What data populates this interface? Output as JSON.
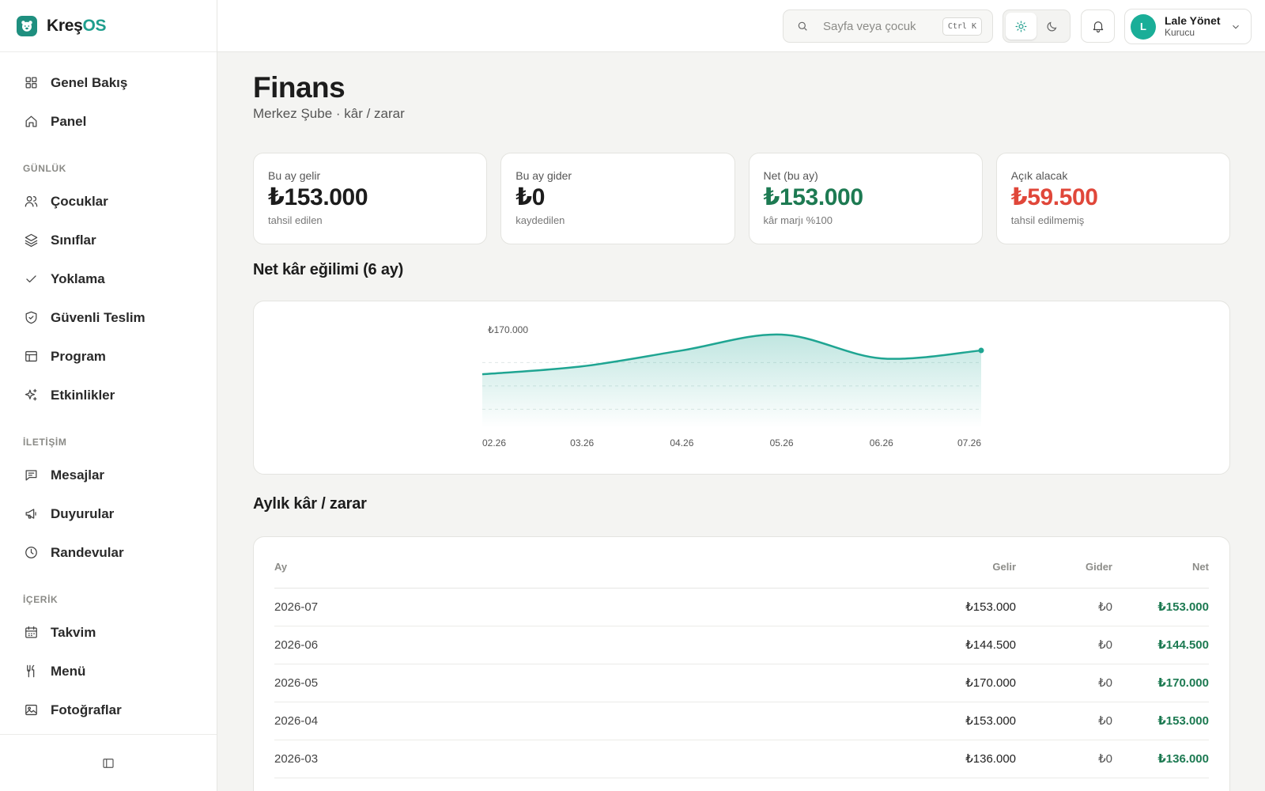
{
  "brand": {
    "name_prefix": "Kreş",
    "name_suffix": "OS"
  },
  "sidebar": {
    "top_items": [
      {
        "label": "Genel Bakış",
        "icon": "grid-icon"
      },
      {
        "label": "Panel",
        "icon": "home-icon"
      }
    ],
    "sections": [
      {
        "title": "GÜNLÜK",
        "items": [
          {
            "label": "Çocuklar",
            "icon": "users-icon"
          },
          {
            "label": "Sınıflar",
            "icon": "layers-icon"
          },
          {
            "label": "Yoklama",
            "icon": "check-icon"
          },
          {
            "label": "Güvenli Teslim",
            "icon": "shield-icon"
          },
          {
            "label": "Program",
            "icon": "table-icon"
          },
          {
            "label": "Etkinlikler",
            "icon": "sparkles-icon"
          }
        ]
      },
      {
        "title": "İLETİŞİM",
        "items": [
          {
            "label": "Mesajlar",
            "icon": "message-icon"
          },
          {
            "label": "Duyurular",
            "icon": "megaphone-icon"
          },
          {
            "label": "Randevular",
            "icon": "clock-icon"
          }
        ]
      },
      {
        "title": "İÇERİK",
        "items": [
          {
            "label": "Takvim",
            "icon": "calendar-icon"
          },
          {
            "label": "Menü",
            "icon": "utensils-icon"
          },
          {
            "label": "Fotoğraflar",
            "icon": "image-icon"
          }
        ]
      }
    ],
    "footer_icon": "sidebar-collapse-icon"
  },
  "header": {
    "search_placeholder": "Sayfa veya çocuk",
    "search_shortcut": "Ctrl K",
    "theme_options": [
      "sun-icon",
      "moon-icon"
    ],
    "active_theme": "light",
    "user": {
      "initial": "L",
      "name": "Lale Yönet",
      "role": "Kurucu"
    }
  },
  "page": {
    "title": "Finans",
    "subtitle": "Merkez Şube · kâr / zarar"
  },
  "kpis": [
    {
      "label": "Bu ay gelir",
      "value": "₺153.000",
      "hint": "tahsil edilen",
      "color": "#1c1c1c"
    },
    {
      "label": "Bu ay gider",
      "value": "₺0",
      "hint": "kaydedilen",
      "color": "#1c1c1c"
    },
    {
      "label": "Net (bu ay)",
      "value": "₺153.000",
      "hint": "kâr marjı %100",
      "color": "#1d7a52"
    },
    {
      "label": "Açık alacak",
      "value": "₺59.500",
      "hint": "tahsil edilmemiş",
      "color": "#e0473a"
    }
  ],
  "chart_section_title": "Net kâr eğilimi (6 ay)",
  "chart_data": {
    "type": "area",
    "title": "",
    "x": [
      "02.26",
      "03.26",
      "04.26",
      "05.26",
      "06.26",
      "07.26"
    ],
    "series": [
      {
        "values": [
          127500,
          136000,
          153000,
          170000,
          144500,
          153000
        ]
      }
    ],
    "max_label": "₺170.000",
    "ylim": [
      0,
      170000
    ],
    "color": "#1fa592",
    "grid": true
  },
  "table_section_title": "Aylık kâr / zarar",
  "table": {
    "columns": [
      "Ay",
      "Gelir",
      "Gider",
      "Net"
    ],
    "rows": [
      {
        "ay": "2026-07",
        "gelir": "₺153.000",
        "gider": "₺0",
        "net": "₺153.000"
      },
      {
        "ay": "2026-06",
        "gelir": "₺144.500",
        "gider": "₺0",
        "net": "₺144.500"
      },
      {
        "ay": "2026-05",
        "gelir": "₺170.000",
        "gider": "₺0",
        "net": "₺170.000"
      },
      {
        "ay": "2026-04",
        "gelir": "₺153.000",
        "gider": "₺0",
        "net": "₺153.000"
      },
      {
        "ay": "2026-03",
        "gelir": "₺136.000",
        "gider": "₺0",
        "net": "₺136.000"
      }
    ]
  }
}
